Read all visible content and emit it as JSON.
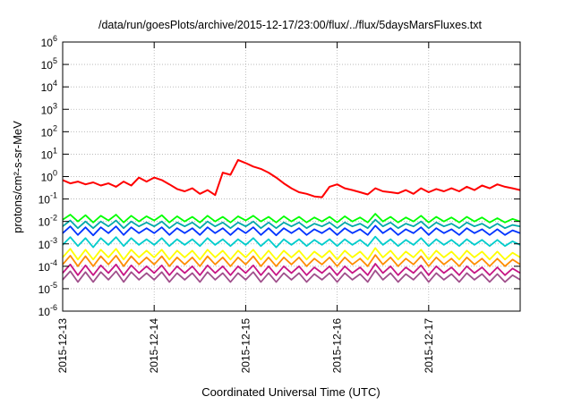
{
  "chart_data": {
    "type": "line",
    "title": "/data/run/goesPlots/archive/2015-12-17/23:00/flux/../flux/5daysMarsFluxes.txt",
    "xlabel": "Coordinated Universal Time (UTC)",
    "ylabel": "protons/cm²-s-sr-MeV",
    "yscale": "log",
    "ylim": [
      1e-06,
      1000000.0
    ],
    "xlim": [
      "2015-12-13",
      "2015-12-18"
    ],
    "grid": true,
    "x_ticks": [
      "2015-12-13",
      "2015-12-14",
      "2015-12-15",
      "2015-12-16",
      "2015-12-17"
    ],
    "y_ticks": [
      {
        "base": "10",
        "exp": "-6",
        "value": 1e-06
      },
      {
        "base": "10",
        "exp": "-5",
        "value": 1e-05
      },
      {
        "base": "10",
        "exp": "-4",
        "value": 0.0001
      },
      {
        "base": "10",
        "exp": "-3",
        "value": 0.001
      },
      {
        "base": "10",
        "exp": "-2",
        "value": 0.01
      },
      {
        "base": "10",
        "exp": "-1",
        "value": 0.1
      },
      {
        "base": "10",
        "exp": "0",
        "value": 1
      },
      {
        "base": "10",
        "exp": "1",
        "value": 10
      },
      {
        "base": "10",
        "exp": "2",
        "value": 100
      },
      {
        "base": "10",
        "exp": "3",
        "value": 1000
      },
      {
        "base": "10",
        "exp": "4",
        "value": 10000
      },
      {
        "base": "10",
        "exp": "5",
        "value": 100000
      },
      {
        "base": "10",
        "exp": "6",
        "value": 1000000
      }
    ],
    "x": [
      "2015-12-13T00:00",
      "2015-12-13T02:00",
      "2015-12-13T04:00",
      "2015-12-13T06:00",
      "2015-12-13T08:00",
      "2015-12-13T10:00",
      "2015-12-13T12:00",
      "2015-12-13T14:00",
      "2015-12-13T16:00",
      "2015-12-13T18:00",
      "2015-12-13T20:00",
      "2015-12-13T22:00",
      "2015-12-14T00:00",
      "2015-12-14T02:00",
      "2015-12-14T04:00",
      "2015-12-14T06:00",
      "2015-12-14T08:00",
      "2015-12-14T10:00",
      "2015-12-14T12:00",
      "2015-12-14T14:00",
      "2015-12-14T16:00",
      "2015-12-14T18:00",
      "2015-12-14T20:00",
      "2015-12-14T22:00",
      "2015-12-15T00:00",
      "2015-12-15T02:00",
      "2015-12-15T04:00",
      "2015-12-15T06:00",
      "2015-12-15T08:00",
      "2015-12-15T10:00",
      "2015-12-15T12:00",
      "2015-12-15T14:00",
      "2015-12-15T16:00",
      "2015-12-15T18:00",
      "2015-12-15T20:00",
      "2015-12-15T22:00",
      "2015-12-16T00:00",
      "2015-12-16T02:00",
      "2015-12-16T04:00",
      "2015-12-16T06:00",
      "2015-12-16T08:00",
      "2015-12-16T10:00",
      "2015-12-16T12:00",
      "2015-12-16T14:00",
      "2015-12-16T16:00",
      "2015-12-16T18:00",
      "2015-12-16T20:00",
      "2015-12-16T22:00",
      "2015-12-17T00:00",
      "2015-12-17T02:00",
      "2015-12-17T04:00",
      "2015-12-17T06:00",
      "2015-12-17T08:00",
      "2015-12-17T10:00",
      "2015-12-17T12:00",
      "2015-12-17T14:00",
      "2015-12-17T16:00",
      "2015-12-17T18:00",
      "2015-12-17T20:00",
      "2015-12-17T22:00",
      "2015-12-18T00:00"
    ],
    "series": [
      {
        "color": "#ff0000",
        "values": [
          0.7,
          0.5,
          0.6,
          0.45,
          0.55,
          0.4,
          0.5,
          0.35,
          0.6,
          0.4,
          0.9,
          0.6,
          0.9,
          0.7,
          0.45,
          0.28,
          0.22,
          0.3,
          0.17,
          0.25,
          0.15,
          1.5,
          1.2,
          5.5,
          4.0,
          2.8,
          2.2,
          1.5,
          0.9,
          0.5,
          0.3,
          0.2,
          0.17,
          0.13,
          0.12,
          0.35,
          0.45,
          0.3,
          0.25,
          0.2,
          0.16,
          0.3,
          0.22,
          0.2,
          0.18,
          0.25,
          0.17,
          0.3,
          0.2,
          0.28,
          0.22,
          0.3,
          0.22,
          0.35,
          0.25,
          0.4,
          0.3,
          0.45,
          0.35,
          0.3,
          0.25
        ]
      },
      {
        "color": "#00ff00",
        "values": [
          0.012,
          0.02,
          0.01,
          0.019,
          0.009,
          0.018,
          0.011,
          0.02,
          0.009,
          0.018,
          0.01,
          0.017,
          0.011,
          0.019,
          0.009,
          0.017,
          0.01,
          0.016,
          0.009,
          0.018,
          0.01,
          0.016,
          0.009,
          0.017,
          0.011,
          0.018,
          0.01,
          0.016,
          0.009,
          0.017,
          0.01,
          0.016,
          0.009,
          0.015,
          0.01,
          0.016,
          0.009,
          0.017,
          0.01,
          0.015,
          0.009,
          0.022,
          0.01,
          0.016,
          0.009,
          0.015,
          0.01,
          0.018,
          0.009,
          0.016,
          0.01,
          0.015,
          0.009,
          0.016,
          0.01,
          0.015,
          0.009,
          0.014,
          0.009,
          0.013,
          0.01
        ]
      },
      {
        "color": "#00aaaa",
        "values": [
          0.006,
          0.011,
          0.005,
          0.01,
          0.005,
          0.01,
          0.006,
          0.011,
          0.005,
          0.01,
          0.006,
          0.009,
          0.006,
          0.01,
          0.005,
          0.009,
          0.006,
          0.009,
          0.005,
          0.01,
          0.006,
          0.009,
          0.005,
          0.009,
          0.006,
          0.01,
          0.005,
          0.009,
          0.005,
          0.009,
          0.006,
          0.009,
          0.005,
          0.008,
          0.006,
          0.009,
          0.005,
          0.009,
          0.006,
          0.008,
          0.005,
          0.012,
          0.006,
          0.009,
          0.005,
          0.008,
          0.006,
          0.01,
          0.005,
          0.009,
          0.006,
          0.008,
          0.005,
          0.009,
          0.006,
          0.008,
          0.005,
          0.008,
          0.005,
          0.007,
          0.006
        ]
      },
      {
        "color": "#0033ff",
        "values": [
          0.003,
          0.006,
          0.0025,
          0.0055,
          0.0024,
          0.0055,
          0.003,
          0.006,
          0.0025,
          0.0055,
          0.003,
          0.005,
          0.003,
          0.0055,
          0.0025,
          0.005,
          0.003,
          0.005,
          0.0025,
          0.0055,
          0.003,
          0.005,
          0.0025,
          0.005,
          0.003,
          0.0055,
          0.0025,
          0.005,
          0.0024,
          0.005,
          0.003,
          0.005,
          0.0025,
          0.0045,
          0.003,
          0.005,
          0.0025,
          0.005,
          0.003,
          0.0045,
          0.0025,
          0.0065,
          0.003,
          0.005,
          0.0025,
          0.0045,
          0.003,
          0.0055,
          0.0025,
          0.005,
          0.003,
          0.0045,
          0.0025,
          0.005,
          0.003,
          0.0045,
          0.0025,
          0.0045,
          0.0025,
          0.004,
          0.003
        ]
      },
      {
        "color": "#00cccc",
        "values": [
          0.0009,
          0.002,
          0.0008,
          0.0018,
          0.0007,
          0.0018,
          0.0009,
          0.002,
          0.0008,
          0.0018,
          0.0009,
          0.0016,
          0.0009,
          0.0018,
          0.0008,
          0.0016,
          0.0009,
          0.0016,
          0.0008,
          0.0018,
          0.0009,
          0.0016,
          0.0008,
          0.0016,
          0.0009,
          0.0018,
          0.0008,
          0.0016,
          0.0007,
          0.0016,
          0.0009,
          0.0016,
          0.0008,
          0.0015,
          0.0009,
          0.0016,
          0.0008,
          0.0016,
          0.0009,
          0.0015,
          0.0008,
          0.0021,
          0.0009,
          0.0016,
          0.0008,
          0.0015,
          0.0009,
          0.0018,
          0.0008,
          0.0016,
          0.0009,
          0.0015,
          0.0008,
          0.0016,
          0.0009,
          0.0015,
          0.0008,
          0.0015,
          0.0008,
          0.0013,
          0.0009
        ]
      },
      {
        "color": "#ffff00",
        "values": [
          0.00025,
          0.0006,
          0.0002,
          0.00055,
          0.0002,
          0.00055,
          0.00025,
          0.0006,
          0.0002,
          0.00055,
          0.00025,
          0.0005,
          0.00025,
          0.00055,
          0.0002,
          0.0005,
          0.00025,
          0.0005,
          0.0002,
          0.00055,
          0.00025,
          0.0005,
          0.0002,
          0.0005,
          0.00025,
          0.00055,
          0.0002,
          0.0005,
          0.0002,
          0.0005,
          0.00025,
          0.0005,
          0.0002,
          0.00045,
          0.00025,
          0.0005,
          0.0002,
          0.0005,
          0.00025,
          0.00045,
          0.0002,
          0.00065,
          0.00025,
          0.0005,
          0.0002,
          0.00045,
          0.00025,
          0.00055,
          0.0002,
          0.0005,
          0.00025,
          0.00045,
          0.0002,
          0.0005,
          0.00025,
          0.00045,
          0.0002,
          0.00045,
          0.0002,
          0.0004,
          0.00025
        ]
      },
      {
        "color": "#ff8c00",
        "values": [
          0.00012,
          0.0003,
          0.0001,
          0.00028,
          0.0001,
          0.00028,
          0.00012,
          0.0003,
          0.0001,
          0.00028,
          0.00012,
          0.00025,
          0.00012,
          0.00028,
          0.0001,
          0.00025,
          0.00012,
          0.00025,
          0.0001,
          0.00028,
          0.00012,
          0.00025,
          0.0001,
          0.00025,
          0.00012,
          0.00028,
          0.0001,
          0.00025,
          0.0001,
          0.00025,
          0.00012,
          0.00025,
          0.0001,
          0.00022,
          0.00012,
          0.00025,
          0.0001,
          0.00025,
          0.00012,
          0.00022,
          0.0001,
          0.00032,
          0.00012,
          0.00025,
          0.0001,
          0.00022,
          0.00012,
          0.00028,
          0.0001,
          0.00025,
          0.00012,
          0.00022,
          0.0001,
          0.00025,
          0.00012,
          0.00022,
          0.0001,
          0.00022,
          0.0001,
          0.0002,
          0.00012
        ]
      },
      {
        "color": "#c71585",
        "values": [
          5e-05,
          0.00012,
          4e-05,
          0.00011,
          4e-05,
          0.00011,
          5e-05,
          0.00012,
          4e-05,
          0.00011,
          5e-05,
          0.0001,
          5e-05,
          0.00011,
          4e-05,
          0.0001,
          5e-05,
          0.0001,
          4e-05,
          0.00011,
          5e-05,
          0.0001,
          4e-05,
          0.0001,
          5e-05,
          0.00011,
          4e-05,
          0.0001,
          4e-05,
          0.0001,
          5e-05,
          0.0001,
          4e-05,
          9e-05,
          5e-05,
          0.0001,
          4e-05,
          0.0001,
          5e-05,
          9e-05,
          4e-05,
          0.00013,
          5e-05,
          0.0001,
          4e-05,
          9e-05,
          5e-05,
          0.00011,
          4e-05,
          0.0001,
          5e-05,
          9e-05,
          4e-05,
          0.0001,
          5e-05,
          9e-05,
          4e-05,
          9e-05,
          4e-05,
          8e-05,
          5e-05
        ]
      },
      {
        "color": "#a0508c",
        "values": [
          2.5e-05,
          6e-05,
          2e-05,
          5.5e-05,
          2e-05,
          5.5e-05,
          2.5e-05,
          6e-05,
          2e-05,
          5.5e-05,
          2.5e-05,
          5e-05,
          2.5e-05,
          5.5e-05,
          2e-05,
          5e-05,
          2.5e-05,
          5e-05,
          2e-05,
          5.5e-05,
          2.5e-05,
          5e-05,
          2e-05,
          5e-05,
          2.5e-05,
          5.5e-05,
          2e-05,
          5e-05,
          2e-05,
          5e-05,
          2.5e-05,
          5e-05,
          2e-05,
          4.5e-05,
          2.5e-05,
          5e-05,
          2e-05,
          5e-05,
          2.5e-05,
          4.5e-05,
          2e-05,
          6.5e-05,
          2.5e-05,
          5e-05,
          2e-05,
          4.5e-05,
          2.5e-05,
          5.5e-05,
          2e-05,
          5e-05,
          2.5e-05,
          4.5e-05,
          2e-05,
          5e-05,
          2.5e-05,
          4.5e-05,
          2e-05,
          4.5e-05,
          2e-05,
          4e-05,
          2.5e-05
        ]
      }
    ]
  }
}
